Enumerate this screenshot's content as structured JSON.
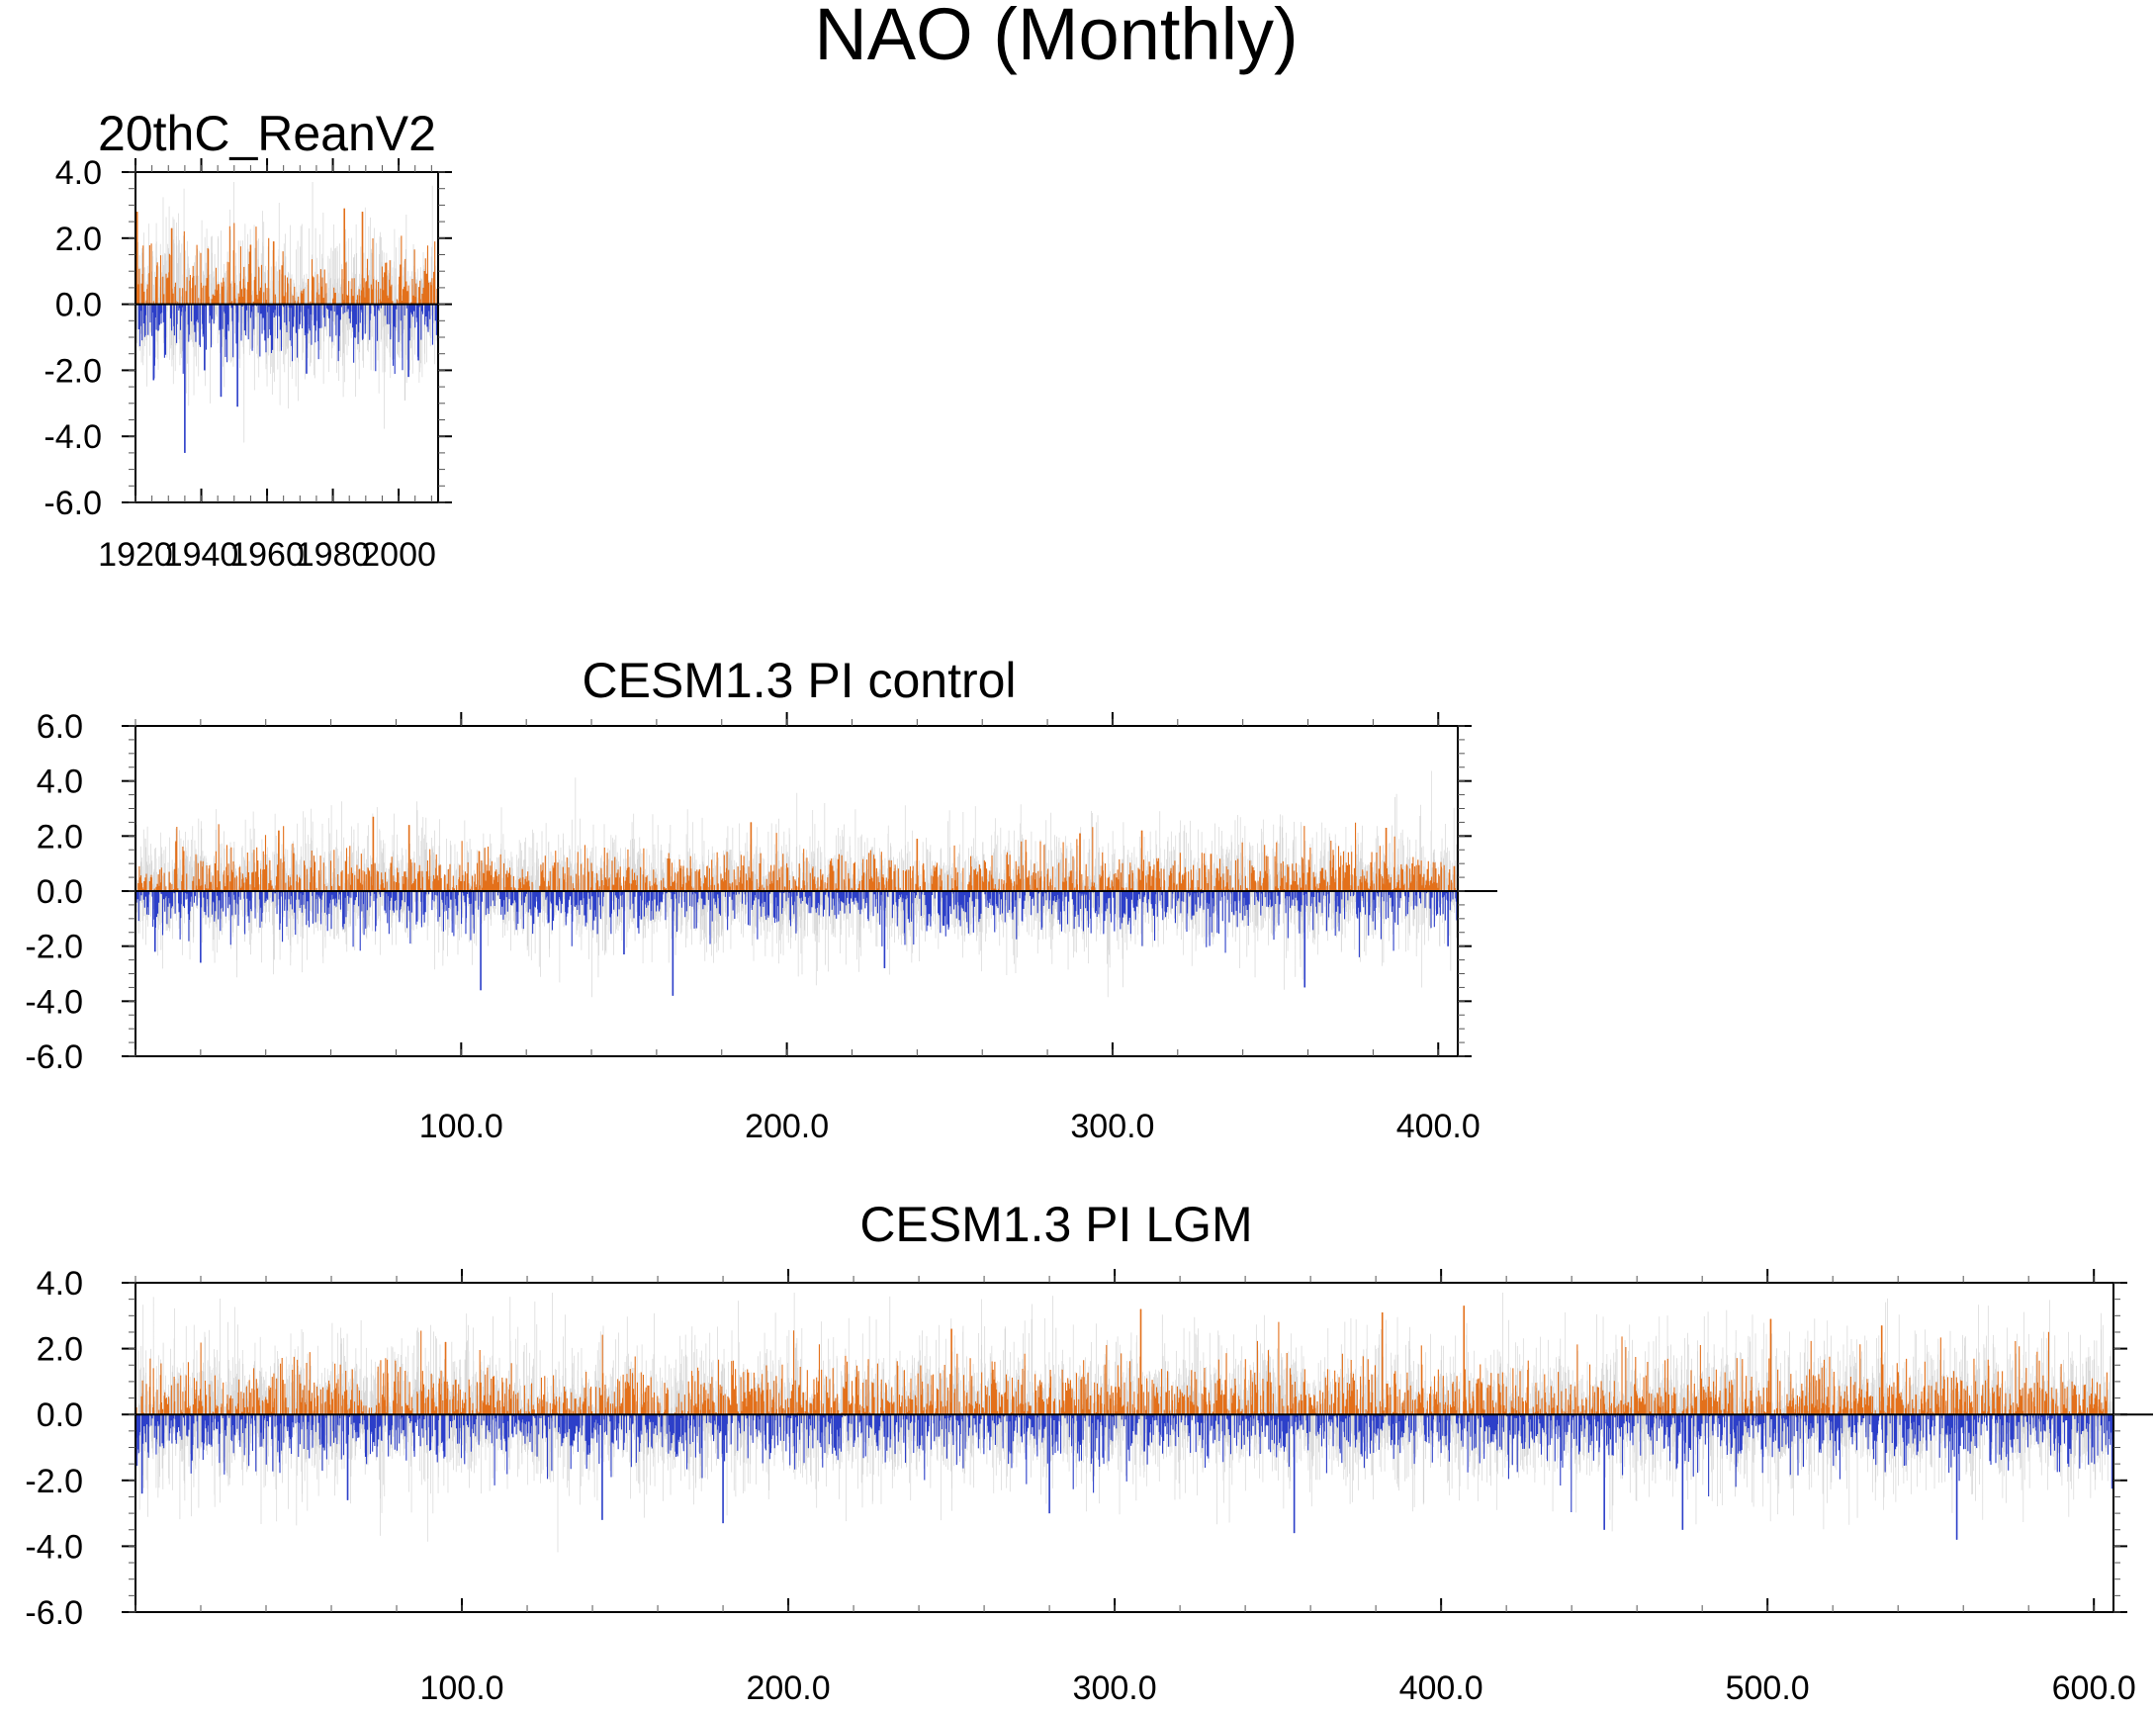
{
  "figure": {
    "title": "NAO (Monthly)"
  },
  "colors": {
    "positive": "#e3701a",
    "negative": "#2c3fc9",
    "faint": "#b4b4b4",
    "axis": "#000000"
  },
  "chart_data": [
    {
      "type": "bar",
      "title": "20thC_ReanV2",
      "xlabel": "",
      "ylabel": "",
      "xlim": [
        1920,
        2012
      ],
      "ylim": [
        -6.0,
        4.0
      ],
      "yticks": [
        4.0,
        2.0,
        0.0,
        -2.0,
        -4.0,
        -6.0
      ],
      "ytick_labels": [
        "4.0",
        "2.0",
        "0.0",
        "-2.0",
        "-4.0",
        "-6.0"
      ],
      "xticks": [
        1920,
        1940,
        1960,
        1980,
        2000
      ],
      "xtick_labels": [
        "1920",
        "1940",
        "1960",
        "1980",
        "2000"
      ],
      "x_minor_step": 5,
      "y_minor_step": 0.5,
      "n_points": 1104,
      "seed": 11,
      "amp": 1.05,
      "spikes": [
        [
          1920.5,
          2.8
        ],
        [
          1935.0,
          -4.5
        ],
        [
          1931.0,
          2.3
        ],
        [
          1951.0,
          -3.1
        ],
        [
          1946.0,
          -2.8
        ],
        [
          1983.5,
          2.9
        ],
        [
          1989.0,
          2.8
        ],
        [
          1925.5,
          -2.3
        ],
        [
          2003.0,
          -2.2
        ],
        [
          2006.0,
          -1.7
        ],
        [
          1941.0,
          -2.0
        ],
        [
          1972.0,
          -2.1
        ],
        [
          1955.0,
          1.8
        ],
        [
          1962.0,
          1.9
        ]
      ]
    },
    {
      "type": "bar",
      "title": "CESM1.3 PI control",
      "xlabel": "",
      "ylabel": "",
      "xlim": [
        0,
        406
      ],
      "ylim": [
        -6.0,
        6.0
      ],
      "yticks": [
        6.0,
        4.0,
        2.0,
        0.0,
        -2.0,
        -4.0,
        -6.0
      ],
      "ytick_labels": [
        "6.0",
        "4.0",
        "2.0",
        "0.0",
        "-2.0",
        "-4.0",
        "-6.0"
      ],
      "xticks": [
        100,
        200,
        300,
        400
      ],
      "xtick_labels": [
        "100.0",
        "200.0",
        "300.0",
        "400.0"
      ],
      "x_minor_step": 20,
      "y_minor_step": 0.5,
      "n_points": 4860,
      "seed": 23,
      "amp": 0.95,
      "spikes": [
        [
          106,
          -3.6
        ],
        [
          165,
          -3.8
        ],
        [
          359,
          -3.5
        ],
        [
          73,
          2.7
        ],
        [
          84,
          2.4
        ],
        [
          189,
          2.5
        ],
        [
          309,
          2.2
        ],
        [
          384,
          2.3
        ],
        [
          6,
          -2.2
        ],
        [
          403,
          -2.0
        ],
        [
          44,
          2.2
        ],
        [
          240,
          1.9
        ],
        [
          20,
          -2.6
        ],
        [
          230,
          -2.8
        ],
        [
          290,
          2.1
        ],
        [
          150,
          -2.3
        ]
      ]
    },
    {
      "type": "bar",
      "title": "CESM1.3 PI LGM",
      "xlabel": "",
      "ylabel": "",
      "xlim": [
        0,
        606
      ],
      "ylim": [
        -6.0,
        4.0
      ],
      "yticks": [
        4.0,
        2.0,
        0.0,
        -2.0,
        -4.0,
        -6.0
      ],
      "ytick_labels": [
        "4.0",
        "2.0",
        "0.0",
        "-2.0",
        "-4.0",
        "-6.0"
      ],
      "xticks": [
        100,
        200,
        300,
        400,
        500,
        600
      ],
      "xtick_labels": [
        "100.0",
        "200.0",
        "300.0",
        "400.0",
        "500.0",
        "600.0"
      ],
      "x_minor_step": 20,
      "y_minor_step": 0.5,
      "n_points": 7260,
      "seed": 37,
      "amp": 1.0,
      "spikes": [
        [
          308,
          3.2
        ],
        [
          382,
          3.1
        ],
        [
          407,
          3.3
        ],
        [
          355,
          -3.6
        ],
        [
          558,
          -3.8
        ],
        [
          450,
          -3.5
        ],
        [
          474,
          -3.5
        ],
        [
          2,
          -2.4
        ],
        [
          143,
          -3.2
        ],
        [
          280,
          -3.0
        ],
        [
          180,
          -3.3
        ],
        [
          501,
          2.9
        ],
        [
          535,
          2.7
        ],
        [
          65,
          -2.6
        ],
        [
          95,
          2.2
        ],
        [
          250,
          2.6
        ]
      ]
    }
  ]
}
